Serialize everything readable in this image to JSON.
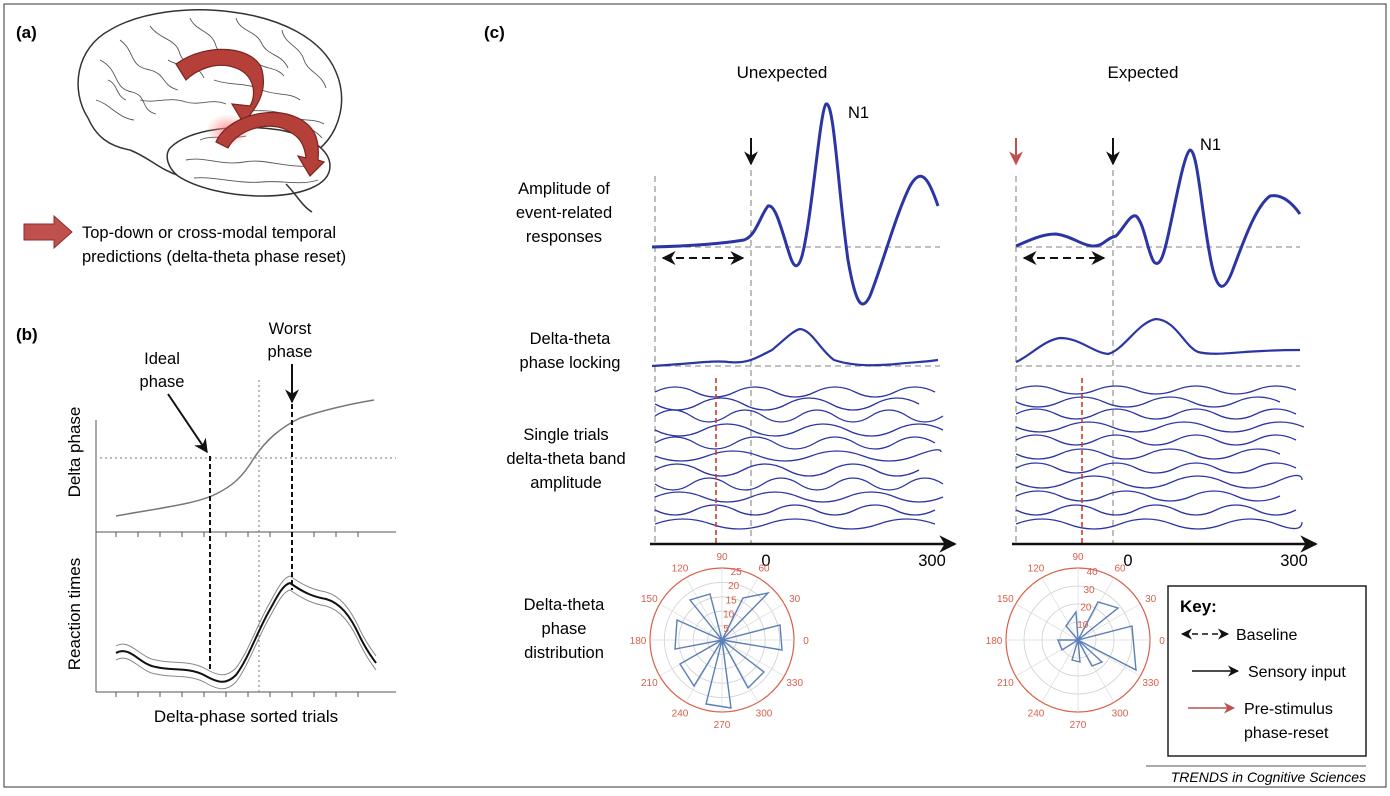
{
  "panel_labels": {
    "a": "(a)",
    "b": "(b)",
    "c": "(c)"
  },
  "panel_a": {
    "legend_line1": "Top-down or cross-modal temporal",
    "legend_line2": "predictions (delta-theta phase reset)"
  },
  "panel_b": {
    "worst_phase_line1": "Worst",
    "worst_phase_line2": "phase",
    "ideal_phase_line1": "Ideal",
    "ideal_phase_line2": "phase",
    "y_label_top": "Delta phase",
    "y_label_bottom": "Reaction times",
    "x_label": "Delta-phase sorted trials"
  },
  "panel_c": {
    "col_unexpected": "Unexpected",
    "col_expected": "Expected",
    "peak_label": "N1",
    "row_amplitude": [
      "Amplitude of",
      "event-related",
      "responses"
    ],
    "row_phase_locking": [
      "Delta-theta",
      "phase locking"
    ],
    "row_single_trials": [
      "Single trials",
      "delta-theta band",
      "amplitude"
    ],
    "row_distribution": [
      "Delta-theta",
      "phase",
      "distribution"
    ],
    "tick_zero": "0",
    "tick_end": "300",
    "polar_angles": [
      "90",
      "60",
      "30",
      "0",
      "330",
      "300",
      "270",
      "240",
      "210",
      "180",
      "150",
      "120"
    ],
    "polar_radii_unexpected": [
      "25",
      "20",
      "15",
      "10",
      "5"
    ],
    "polar_radii_expected": [
      "40",
      "30",
      "20",
      "10"
    ]
  },
  "key": {
    "title": "Key:",
    "baseline": "Baseline",
    "sensory_input": "Sensory input",
    "reset_line1": "Pre-stimulus",
    "reset_line2": "phase-reset"
  },
  "footer": {
    "source": "TRENDS in Cognitive Sciences"
  },
  "colors": {
    "wave_blue": "#2b35a3",
    "arrow_red": "#c0504d",
    "polar_red": "#d9604c",
    "grey_dash": "#9a9a9a",
    "frame": "#333333"
  }
}
